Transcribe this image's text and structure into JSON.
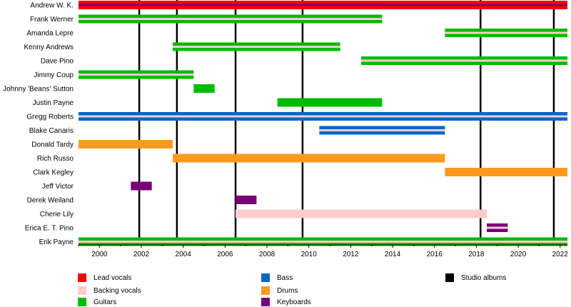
{
  "chart_data": {
    "type": "timeline",
    "x_range": [
      1999,
      2022.35
    ],
    "x_ticks": [
      "2000",
      "2002",
      "2004",
      "2006",
      "2008",
      "2010",
      "2012",
      "2014",
      "2016",
      "2018",
      "2020",
      "2022"
    ],
    "x_tick_values": [
      2000,
      2002,
      2004,
      2006,
      2008,
      2010,
      2012,
      2014,
      2016,
      2018,
      2020,
      2022
    ],
    "roles": {
      "lead_vocals": {
        "label": "Lead vocals",
        "color": "#ff0000"
      },
      "backing_vocals": {
        "label": "Backing vocals",
        "color": "#ffcccc"
      },
      "guitars": {
        "label": "Guitars",
        "color": "#00bb00"
      },
      "bass": {
        "label": "Bass",
        "color": "#0066cc"
      },
      "drums": {
        "label": "Drums",
        "color": "#ff9922"
      },
      "keyboards": {
        "label": "Keyboards",
        "color": "#770077"
      },
      "studio_albums": {
        "label": "Studio albums",
        "color": "#000000"
      }
    },
    "members": [
      {
        "name": "Andrew W. K.",
        "spans": [
          {
            "start": 1999,
            "end": 2022.35,
            "roles": [
              "lead_vocals",
              "keyboards"
            ]
          }
        ]
      },
      {
        "name": "Frank Werner",
        "spans": [
          {
            "start": 1999,
            "end": 2013.5,
            "roles": [
              "guitars",
              "backing_vocals"
            ]
          }
        ]
      },
      {
        "name": "Amanda Lepre",
        "spans": [
          {
            "start": 2016.5,
            "end": 2022.35,
            "roles": [
              "guitars",
              "backing_vocals"
            ]
          }
        ]
      },
      {
        "name": "Kenny Andrews",
        "spans": [
          {
            "start": 2003.5,
            "end": 2011.5,
            "roles": [
              "guitars",
              "backing_vocals"
            ]
          }
        ]
      },
      {
        "name": "Dave Pino",
        "spans": [
          {
            "start": 2012.5,
            "end": 2022.35,
            "roles": [
              "guitars",
              "backing_vocals"
            ]
          }
        ]
      },
      {
        "name": "Jimmy Coup",
        "spans": [
          {
            "start": 1999,
            "end": 2004.5,
            "roles": [
              "guitars",
              "backing_vocals"
            ]
          }
        ]
      },
      {
        "name": "Johnny 'Beans' Sutton",
        "spans": [
          {
            "start": 2004.5,
            "end": 2005.5,
            "roles": [
              "guitars"
            ]
          }
        ]
      },
      {
        "name": "Justin Payne",
        "spans": [
          {
            "start": 2008.5,
            "end": 2013.5,
            "roles": [
              "guitars"
            ]
          }
        ]
      },
      {
        "name": "Gregg Roberts",
        "spans": [
          {
            "start": 1999,
            "end": 2022.35,
            "roles": [
              "bass",
              "backing_vocals"
            ]
          }
        ]
      },
      {
        "name": "Blake Canaris",
        "spans": [
          {
            "start": 2010.5,
            "end": 2016.5,
            "roles": [
              "bass",
              "backing_vocals"
            ]
          }
        ]
      },
      {
        "name": "Donald Tardy",
        "spans": [
          {
            "start": 1999,
            "end": 2003.5,
            "roles": [
              "drums"
            ]
          }
        ]
      },
      {
        "name": "Rich Russo",
        "spans": [
          {
            "start": 2003.5,
            "end": 2016.5,
            "roles": [
              "drums"
            ]
          }
        ]
      },
      {
        "name": "Clark Kegley",
        "spans": [
          {
            "start": 2016.5,
            "end": 2022.35,
            "roles": [
              "drums"
            ]
          }
        ]
      },
      {
        "name": "Jeff Victor",
        "spans": [
          {
            "start": 2001.5,
            "end": 2002.5,
            "roles": [
              "keyboards"
            ]
          }
        ]
      },
      {
        "name": "Derek Weiland",
        "spans": [
          {
            "start": 2006.5,
            "end": 2007.5,
            "roles": [
              "keyboards"
            ]
          }
        ]
      },
      {
        "name": "Cherie Lily",
        "spans": [
          {
            "start": 2006.5,
            "end": 2018.5,
            "roles": [
              "backing_vocals"
            ]
          }
        ]
      },
      {
        "name": "Erica E. T. Pino",
        "spans": [
          {
            "start": 2018.5,
            "end": 2019.5,
            "roles": [
              "keyboards",
              "backing_vocals"
            ]
          }
        ]
      },
      {
        "name": "Erik Payne",
        "spans": [
          {
            "start": 1999,
            "end": 2022.35,
            "roles": [
              "guitars",
              "backing_vocals"
            ]
          }
        ]
      }
    ],
    "studio_albums": [
      2001.9,
      2003.7,
      2006.5,
      2009.7,
      2018.2,
      2021.7
    ],
    "legend": [
      {
        "key": "lead_vocals",
        "label": "Lead vocals"
      },
      {
        "key": "backing_vocals",
        "label": "Backing vocals"
      },
      {
        "key": "guitars",
        "label": "Guitars"
      },
      {
        "key": "bass",
        "label": "Bass"
      },
      {
        "key": "drums",
        "label": "Drums"
      },
      {
        "key": "keyboards",
        "label": "Keyboards"
      },
      {
        "key": "studio_albums",
        "label": "Studio albums"
      }
    ]
  }
}
